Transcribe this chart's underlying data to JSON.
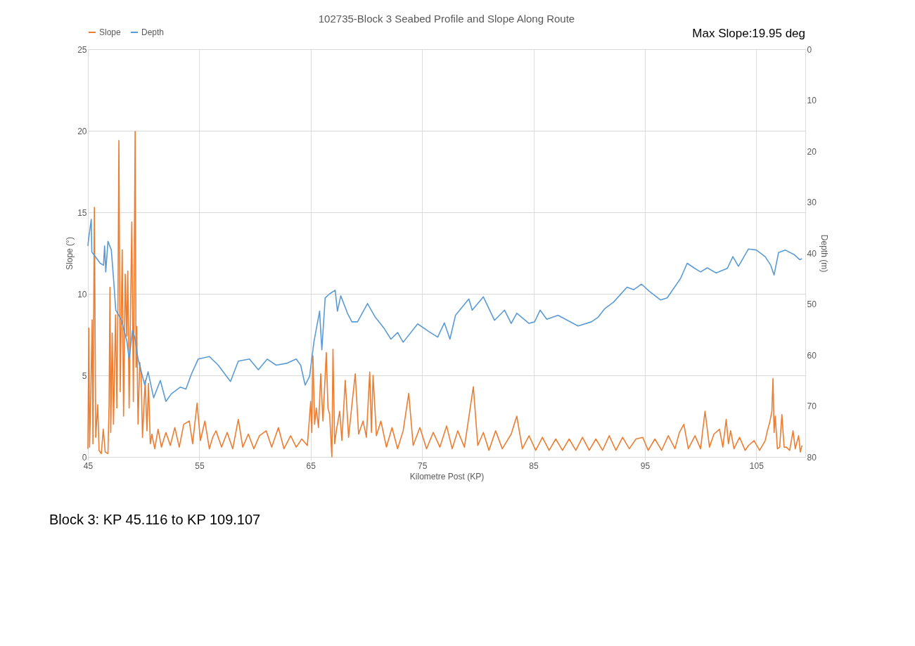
{
  "chart_data": {
    "type": "line",
    "title": "102735-Block 3 Seabed Profile and Slope Along Route",
    "xlabel": "Kilometre Post (KP)",
    "ylabel": "Slope (°)",
    "y2label": "Depth (m)",
    "xlim": [
      45,
      109.4
    ],
    "xticks": [
      45,
      55,
      65,
      75,
      85,
      95,
      105
    ],
    "ylim": [
      0,
      25
    ],
    "yticks": [
      0,
      5,
      10,
      15,
      20,
      25
    ],
    "y2lim": [
      80,
      0
    ],
    "y2ticks": [
      0,
      10,
      20,
      30,
      40,
      50,
      60,
      70,
      80
    ],
    "grid": true,
    "legend": "top",
    "marker": "none",
    "line_style": "solid",
    "annotations": [
      "Max Slope:19.95 deg",
      "Block 3: KP 45.116 to KP 109.107"
    ],
    "series": [
      {
        "name": "Slope",
        "color": "#ed7d31",
        "x": [
          45.0,
          45.08,
          45.15,
          45.25,
          45.38,
          45.45,
          45.58,
          45.7,
          45.88,
          46.0,
          46.2,
          46.38,
          46.55,
          46.8,
          46.9,
          46.98,
          47.05,
          47.18,
          47.3,
          47.48,
          47.6,
          47.7,
          47.78,
          47.9,
          48.08,
          48.2,
          48.35,
          48.48,
          48.58,
          48.7,
          48.94,
          49.08,
          49.24,
          49.32,
          49.38,
          49.5,
          49.65,
          49.78,
          49.9,
          50.14,
          50.3,
          50.44,
          50.6,
          50.74,
          51.0,
          51.3,
          51.6,
          52.0,
          52.4,
          52.8,
          53.2,
          53.6,
          54.1,
          54.4,
          54.8,
          55.1,
          55.5,
          55.9,
          56.2,
          56.5,
          57.0,
          57.5,
          58.0,
          58.5,
          58.9,
          59.4,
          59.9,
          60.4,
          61.0,
          61.5,
          62.1,
          62.6,
          63.2,
          63.7,
          64.2,
          64.7,
          65.0,
          65.1,
          65.2,
          65.35,
          65.5,
          65.7,
          65.9,
          66.1,
          66.4,
          66.55,
          66.7,
          66.9,
          67.0,
          67.15,
          67.3,
          67.6,
          67.8,
          68.1,
          68.4,
          68.7,
          69.0,
          69.3,
          69.7,
          70.0,
          70.3,
          70.45,
          70.6,
          70.9,
          71.3,
          71.8,
          72.3,
          72.8,
          73.3,
          73.8,
          74.2,
          74.8,
          75.4,
          76.0,
          76.6,
          77.2,
          77.7,
          78.2,
          78.8,
          79.6,
          80.0,
          80.5,
          81.0,
          81.6,
          82.2,
          83.0,
          83.5,
          84.0,
          84.6,
          85.2,
          85.8,
          86.4,
          87.0,
          87.6,
          88.2,
          88.8,
          89.4,
          90.0,
          90.6,
          91.2,
          91.8,
          92.4,
          93.0,
          93.6,
          94.2,
          94.8,
          95.3,
          95.9,
          96.5,
          97.1,
          97.7,
          98.1,
          98.5,
          98.9,
          99.5,
          100.0,
          100.4,
          100.8,
          101.2,
          101.7,
          102.0,
          102.3,
          102.5,
          102.7,
          103.0,
          103.5,
          104.0,
          104.3,
          104.8,
          105.3,
          105.8,
          106.0,
          106.2,
          106.4,
          106.5,
          106.6,
          106.7,
          106.9,
          107.1,
          107.3,
          107.5,
          107.7,
          108.0,
          108.3,
          108.5,
          108.8,
          108.95,
          109.1
        ],
        "values": [
          0.5,
          7.9,
          0.6,
          3.5,
          8.4,
          0.8,
          15.3,
          1.2,
          3.2,
          0.4,
          0.2,
          1.7,
          0.3,
          0.2,
          3.2,
          10.4,
          1.5,
          7.6,
          2.0,
          8.7,
          3.0,
          9.8,
          19.4,
          4.0,
          12.7,
          2.5,
          11.2,
          7.4,
          11.4,
          3.0,
          14.4,
          3.4,
          19.95,
          5.5,
          8.0,
          2.0,
          5.8,
          5.0,
          1.2,
          4.7,
          1.6,
          4.5,
          0.8,
          1.4,
          0.5,
          1.7,
          0.6,
          1.5,
          0.7,
          1.8,
          0.6,
          2.0,
          2.2,
          0.8,
          3.3,
          1.0,
          2.2,
          0.5,
          1.2,
          1.6,
          0.6,
          1.5,
          0.5,
          2.3,
          0.6,
          1.4,
          0.5,
          1.3,
          1.6,
          0.6,
          1.8,
          0.5,
          1.3,
          0.6,
          1.1,
          0.7,
          3.4,
          1.5,
          6.2,
          2.0,
          3.0,
          1.8,
          5.1,
          2.2,
          6.4,
          3.0,
          2.6,
          0,
          6.6,
          0.8,
          1.6,
          2.8,
          1.0,
          4.7,
          1.2,
          3.2,
          5.1,
          1.4,
          2.2,
          1.2,
          5.2,
          1.5,
          5.0,
          1.3,
          2.2,
          0.6,
          1.8,
          0.5,
          1.6,
          3.9,
          0.7,
          1.8,
          0.5,
          1.5,
          0.6,
          1.9,
          0.5,
          1.6,
          0.6,
          4.3,
          0.7,
          1.5,
          0.4,
          1.6,
          0.5,
          1.4,
          2.5,
          0.5,
          1.3,
          0.4,
          1.2,
          0.4,
          1.1,
          0.4,
          1.1,
          0.4,
          1.2,
          0.4,
          1.1,
          0.4,
          1.3,
          0.4,
          1.2,
          0.5,
          1.1,
          1.2,
          0.4,
          1.1,
          0.4,
          1.3,
          0.5,
          1.5,
          2.0,
          0.5,
          1.3,
          0.5,
          2.8,
          0.6,
          1.4,
          1.7,
          0.6,
          2.3,
          0.8,
          1.6,
          0.5,
          1.2,
          0.4,
          0.7,
          1.0,
          0.4,
          1.0,
          1.6,
          2.1,
          2.8,
          4.8,
          1.5,
          2.5,
          0.5,
          0.6,
          2.6,
          0.6,
          0.6,
          0.4,
          1.6,
          0.5,
          1.3,
          0.3,
          0.7
        ]
      },
      {
        "name": "Depth",
        "color": "#5b9bd5",
        "axis": "y2",
        "x": [
          45.0,
          45.06,
          45.3,
          45.35,
          45.7,
          46.1,
          46.4,
          46.5,
          46.6,
          46.8,
          47.1,
          47.3,
          47.5,
          48.0,
          48.5,
          48.7,
          49.0,
          49.2,
          49.5,
          50.1,
          50.4,
          50.9,
          51.5,
          52.0,
          52.5,
          53.3,
          53.8,
          54.3,
          54.9,
          55.9,
          56.7,
          57.8,
          58.5,
          59.5,
          60.3,
          61.1,
          61.9,
          62.9,
          63.7,
          64.1,
          64.5,
          64.9,
          65.3,
          65.8,
          66.0,
          66.3,
          66.7,
          67.2,
          67.4,
          67.7,
          68.3,
          68.7,
          69.2,
          70.1,
          70.8,
          71.6,
          72.2,
          72.8,
          73.3,
          74.6,
          75.6,
          76.4,
          77.0,
          77.5,
          78.0,
          79.2,
          79.5,
          80.5,
          81.5,
          82.4,
          83.0,
          83.5,
          84.6,
          85.1,
          85.6,
          86.2,
          87.2,
          89.0,
          90.2,
          90.8,
          91.4,
          92.2,
          93.4,
          94.0,
          94.7,
          95.4,
          96.4,
          97.0,
          98.2,
          98.8,
          99.4,
          100.0,
          100.6,
          101.4,
          102.4,
          102.9,
          103.4,
          104.3,
          105.0,
          105.8,
          106.3,
          106.6,
          107.0,
          107.6,
          108.4,
          108.9,
          109.1
        ],
        "values": [
          38.6,
          37.3,
          33.4,
          39.8,
          40.8,
          42.0,
          42.4,
          38.6,
          43.7,
          37.7,
          39.4,
          45.0,
          51.2,
          53.1,
          57.3,
          60.8,
          55.2,
          56.5,
          60.8,
          65.9,
          63.3,
          68.4,
          65.0,
          69.1,
          67.6,
          66.3,
          66.7,
          63.7,
          60.8,
          60.3,
          62.0,
          65.2,
          61.2,
          60.8,
          62.9,
          60.8,
          62.0,
          61.6,
          60.8,
          62.0,
          65.9,
          64.2,
          57.3,
          51.4,
          59.0,
          48.8,
          48.0,
          47.3,
          51.4,
          48.4,
          51.8,
          53.5,
          53.5,
          49.9,
          52.6,
          54.8,
          56.9,
          55.6,
          57.5,
          53.9,
          55.4,
          56.5,
          53.7,
          56.9,
          52.2,
          49.0,
          51.2,
          48.6,
          53.2,
          51.2,
          53.8,
          51.8,
          53.8,
          53.5,
          51.2,
          53.0,
          52.2,
          54.3,
          53.5,
          52.6,
          50.9,
          49.6,
          46.7,
          47.2,
          46.1,
          47.5,
          49.2,
          48.8,
          45.0,
          42.0,
          42.9,
          43.7,
          42.9,
          43.9,
          43.0,
          40.7,
          42.6,
          39.2,
          39.4,
          40.7,
          42.4,
          44.3,
          39.9,
          39.4,
          40.3,
          41.3,
          41.1
        ]
      }
    ]
  }
}
